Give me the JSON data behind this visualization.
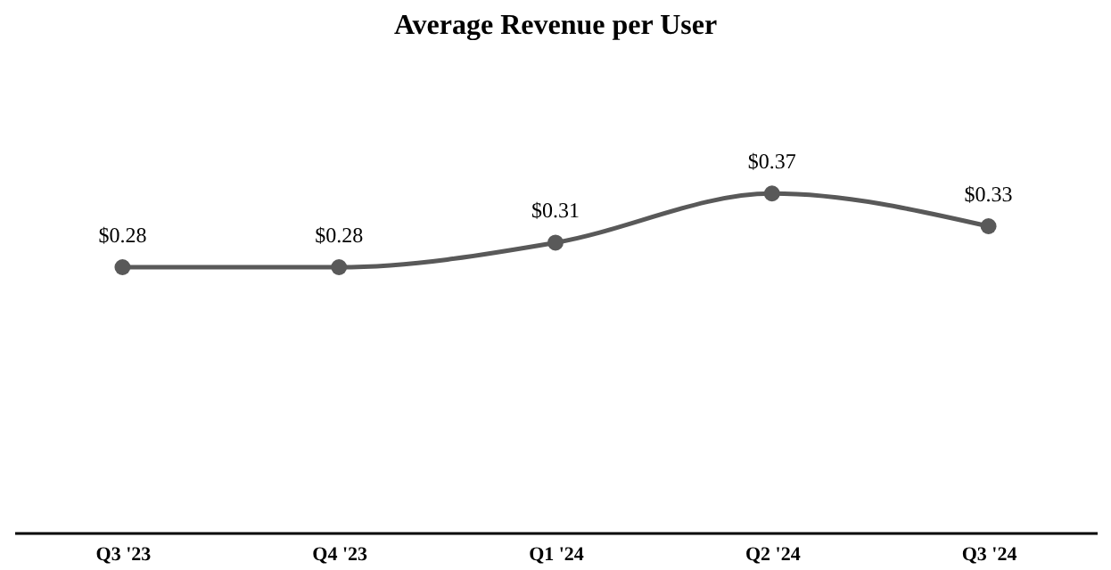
{
  "chart_data": {
    "type": "line",
    "title": "Average Revenue per User",
    "categories": [
      "Q3 '23",
      "Q4 '23",
      "Q1 '24",
      "Q2 '24",
      "Q3 '24"
    ],
    "series": [
      {
        "color": "#595959",
        "values": [
          0.28,
          0.28,
          0.31,
          0.37,
          0.33
        ],
        "value_labels": [
          "$0.28",
          "$0.28",
          "$0.31",
          "$0.37",
          "$0.33"
        ]
      }
    ],
    "marker": "circle",
    "line_style": "solid",
    "tick_labels": "x"
  }
}
